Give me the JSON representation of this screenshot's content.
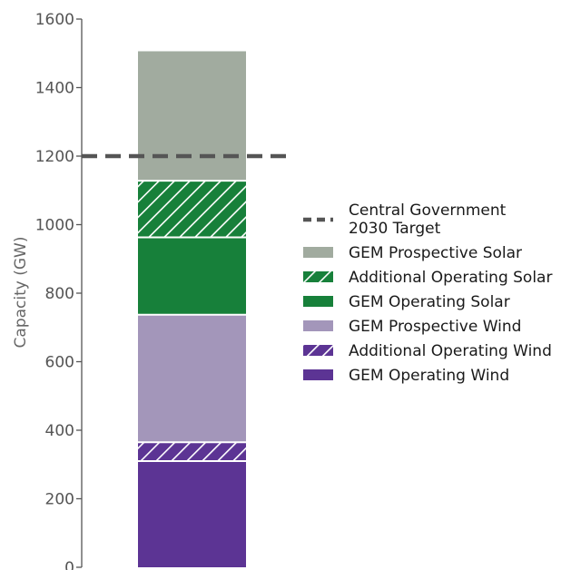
{
  "chart_data": {
    "type": "bar",
    "stacked": true,
    "categories": [
      ""
    ],
    "ylabel": "Capacity (GW)",
    "ylim": [
      0,
      1600
    ],
    "yticks": [
      0,
      200,
      400,
      600,
      800,
      1000,
      1200,
      1400,
      1600
    ],
    "ytick_labels": [
      "0",
      "200",
      "400",
      "600",
      "800",
      "1000",
      "1200",
      "1400",
      "1600"
    ],
    "grid": false,
    "legend_position": "right",
    "series": [
      {
        "name": "GEM Operating Wind",
        "values": [
          310
        ],
        "color": "#5c3494",
        "hatch": false
      },
      {
        "name": "Additional Operating Wind",
        "values": [
          55
        ],
        "color": "#5c3494",
        "hatch": true
      },
      {
        "name": "GEM Prospective Wind",
        "values": [
          372
        ],
        "color": "#a396ba",
        "hatch": false
      },
      {
        "name": "GEM Operating Solar",
        "values": [
          226
        ],
        "color": "#17803a",
        "hatch": false
      },
      {
        "name": "Additional Operating Solar",
        "values": [
          165
        ],
        "color": "#17803a",
        "hatch": true
      },
      {
        "name": "GEM Prospective Solar",
        "values": [
          378
        ],
        "color": "#a1ab9f",
        "hatch": false
      }
    ],
    "reference_lines": [
      {
        "name": "Central Government\n2030 Target",
        "label_lines": [
          "Central Government",
          "2030 Target"
        ],
        "value": 1200,
        "color": "#555555",
        "style": "dashed"
      }
    ],
    "legend": [
      {
        "kind": "line",
        "label_lines": [
          "Central Government",
          "2030 Target"
        ],
        "color": "#555555"
      },
      {
        "kind": "patch",
        "label": "GEM Prospective Solar",
        "color": "#a1ab9f",
        "hatch": false
      },
      {
        "kind": "patch",
        "label": "Additional Operating Solar",
        "color": "#17803a",
        "hatch": true
      },
      {
        "kind": "patch",
        "label": "GEM Operating Solar",
        "color": "#17803a",
        "hatch": false
      },
      {
        "kind": "patch",
        "label": "GEM Prospective Wind",
        "color": "#a396ba",
        "hatch": false
      },
      {
        "kind": "patch",
        "label": "Additional Operating Wind",
        "color": "#5c3494",
        "hatch": true
      },
      {
        "kind": "patch",
        "label": "GEM Operating Wind",
        "color": "#5c3494",
        "hatch": false
      }
    ]
  }
}
